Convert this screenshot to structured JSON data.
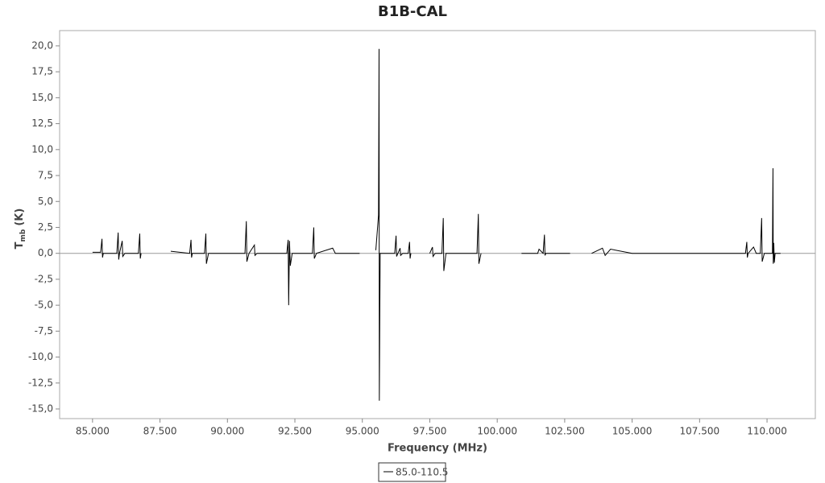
{
  "chart_data": {
    "type": "line",
    "title": "B1B-CAL",
    "x_label": "Frequency (MHz)",
    "y_label": {
      "text": "T",
      "subscript": "mb",
      "unit": "(K)"
    },
    "x": [
      85.0,
      85.3,
      85.35,
      85.37,
      85.4,
      85.9,
      85.95,
      85.97,
      86.0,
      86.1,
      86.12,
      86.2,
      86.7,
      86.75,
      86.77,
      86.8,
      null,
      87.9,
      88.6,
      88.65,
      88.67,
      88.7,
      89.15,
      89.2,
      89.22,
      89.3,
      90.65,
      90.7,
      90.72,
      90.8,
      91.0,
      91.02,
      91.1,
      92.2,
      92.25,
      92.27,
      92.3,
      92.33,
      92.4,
      93.15,
      93.2,
      93.22,
      93.3,
      93.9,
      94.0,
      94.9,
      null,
      95.5,
      95.6,
      95.62,
      95.63,
      95.66,
      95.8,
      96.2,
      96.25,
      96.27,
      96.4,
      96.42,
      96.5,
      96.7,
      96.75,
      96.77,
      96.8,
      null,
      97.5,
      97.6,
      97.62,
      97.7,
      97.95,
      98.0,
      98.02,
      98.1,
      99.25,
      99.3,
      99.32,
      99.4,
      null,
      100.9,
      101.5,
      101.55,
      101.7,
      101.75,
      101.77,
      101.8,
      102.7,
      null,
      103.5,
      103.9,
      104.0,
      104.2,
      105.0,
      107.0,
      109.2,
      109.25,
      109.27,
      109.3,
      109.5,
      109.6,
      109.75,
      109.8,
      109.82,
      109.9,
      110.2,
      110.22,
      110.23,
      110.25,
      110.27,
      110.3,
      110.5
    ],
    "series": [
      {
        "name": "85.0-110.5",
        "color": "#000000",
        "values": [
          0.1,
          0.1,
          1.4,
          -0.4,
          0.0,
          0.0,
          2.0,
          -0.6,
          0.0,
          1.2,
          -0.3,
          0.0,
          0.0,
          1.9,
          -0.5,
          0.0,
          null,
          0.2,
          0.0,
          1.3,
          -0.4,
          0.0,
          0.0,
          1.9,
          -1.0,
          0.0,
          0.0,
          3.1,
          -0.8,
          0.0,
          0.8,
          -0.2,
          0.0,
          0.0,
          1.3,
          -5.0,
          1.2,
          -1.2,
          0.0,
          0.0,
          2.5,
          -0.5,
          0.0,
          0.5,
          0.0,
          0.0,
          null,
          0.3,
          3.7,
          19.7,
          -14.2,
          0.0,
          0.0,
          0.0,
          1.7,
          -0.3,
          0.5,
          -0.2,
          0.0,
          0.0,
          1.1,
          -0.5,
          0.0,
          null,
          0.0,
          0.6,
          -0.3,
          0.0,
          0.0,
          3.4,
          -1.7,
          0.0,
          0.0,
          3.8,
          -1.0,
          0.0,
          null,
          0.0,
          0.0,
          0.4,
          0.0,
          1.8,
          -0.2,
          0.0,
          0.0,
          null,
          0.0,
          0.5,
          -0.2,
          0.4,
          0.0,
          0.0,
          0.0,
          1.1,
          -0.4,
          0.0,
          0.6,
          0.0,
          0.0,
          3.4,
          -0.8,
          0.0,
          0.0,
          8.2,
          -1.0,
          1.0,
          -0.9,
          0.0,
          0.0
        ]
      }
    ],
    "xlim": [
      83.78,
      111.79
    ],
    "ylim": [
      -15.93,
      21.47
    ],
    "xticks": [
      {
        "value": 85,
        "label": "85.000"
      },
      {
        "value": 87.5,
        "label": "87.500"
      },
      {
        "value": 90,
        "label": "90.000"
      },
      {
        "value": 92.5,
        "label": "92.500"
      },
      {
        "value": 95,
        "label": "95.000"
      },
      {
        "value": 97.5,
        "label": "97.500"
      },
      {
        "value": 100,
        "label": "100.000"
      },
      {
        "value": 102.5,
        "label": "102.500"
      },
      {
        "value": 105,
        "label": "105.000"
      },
      {
        "value": 107.5,
        "label": "107.500"
      },
      {
        "value": 110,
        "label": "110.000"
      }
    ],
    "yticks": [
      {
        "value": 20,
        "label": "20,0"
      },
      {
        "value": 17.5,
        "label": "17,5"
      },
      {
        "value": 15,
        "label": "15,0"
      },
      {
        "value": 12.5,
        "label": "12,5"
      },
      {
        "value": 10,
        "label": "10,0"
      },
      {
        "value": 7.5,
        "label": "7,5"
      },
      {
        "value": 5,
        "label": "5,0"
      },
      {
        "value": 2.5,
        "label": "2,5"
      },
      {
        "value": 0,
        "label": "0,0"
      },
      {
        "value": -2.5,
        "label": "-2,5"
      },
      {
        "value": -5,
        "label": "-5,0"
      },
      {
        "value": -7.5,
        "label": "-7,5"
      },
      {
        "value": -10,
        "label": "-10,0"
      },
      {
        "value": -12.5,
        "label": "-12,5"
      },
      {
        "value": -15,
        "label": "-15,0"
      }
    ],
    "legend": "bottom"
  }
}
